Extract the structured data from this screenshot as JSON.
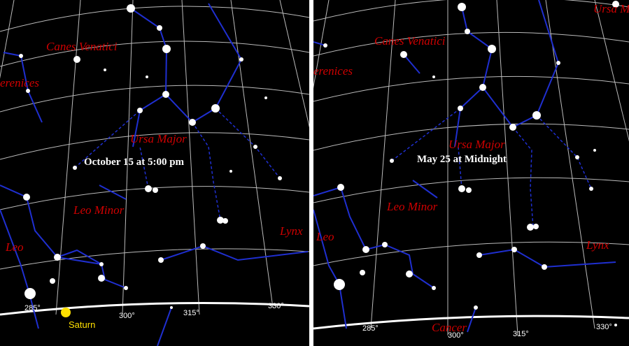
{
  "panels": [
    {
      "caption": "October 15 at 5:00 pm",
      "labels": [
        "Canes Venatici",
        "erenices",
        "Ursa Major",
        "Leo Minor",
        "Leo",
        "Lynx"
      ],
      "degrees": [
        "285°",
        "300°",
        "315°",
        "330°"
      ],
      "planet": "Saturn"
    },
    {
      "caption": "May 25 at Midnight",
      "labels": [
        "Ursa M",
        "Canes Venatici",
        "erenices",
        "Ursa Major",
        "Leo Minor",
        "Leo",
        "Lynx",
        "Cancer"
      ],
      "degrees": [
        "285°",
        "300°",
        "315°",
        "330°"
      ]
    }
  ]
}
